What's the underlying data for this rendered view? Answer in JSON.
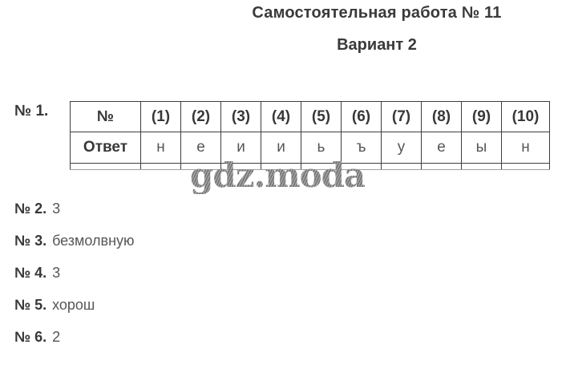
{
  "header": {
    "title": "Самостоятельная работа № 11",
    "subtitle": "Вариант 2"
  },
  "task1": {
    "label": "№ 1.",
    "table": {
      "columns": [
        "№",
        "(1)",
        "(2)",
        "(3)",
        "(4)",
        "(5)",
        "(6)",
        "(7)",
        "(8)",
        "(9)",
        "(10)"
      ],
      "row_label": "Ответ",
      "answers": [
        "н",
        "е",
        "и",
        "и",
        "ь",
        "ъ",
        "у",
        "е",
        "ы",
        "н"
      ]
    }
  },
  "tasks": [
    {
      "label": "№ 2.",
      "answer": "3"
    },
    {
      "label": "№ 3.",
      "answer": "безмолвную"
    },
    {
      "label": "№ 4.",
      "answer": "3"
    },
    {
      "label": "№ 5.",
      "answer": "хорош"
    },
    {
      "label": "№ 6.",
      "answer": "2"
    }
  ],
  "watermark": {
    "text": "gdz.moda"
  },
  "colors": {
    "text_dark": "#383838",
    "text_gray": "#565656",
    "table_border": "#3e3e3e",
    "watermark_gray": "#8d8d8d",
    "background": "#ffffff"
  }
}
